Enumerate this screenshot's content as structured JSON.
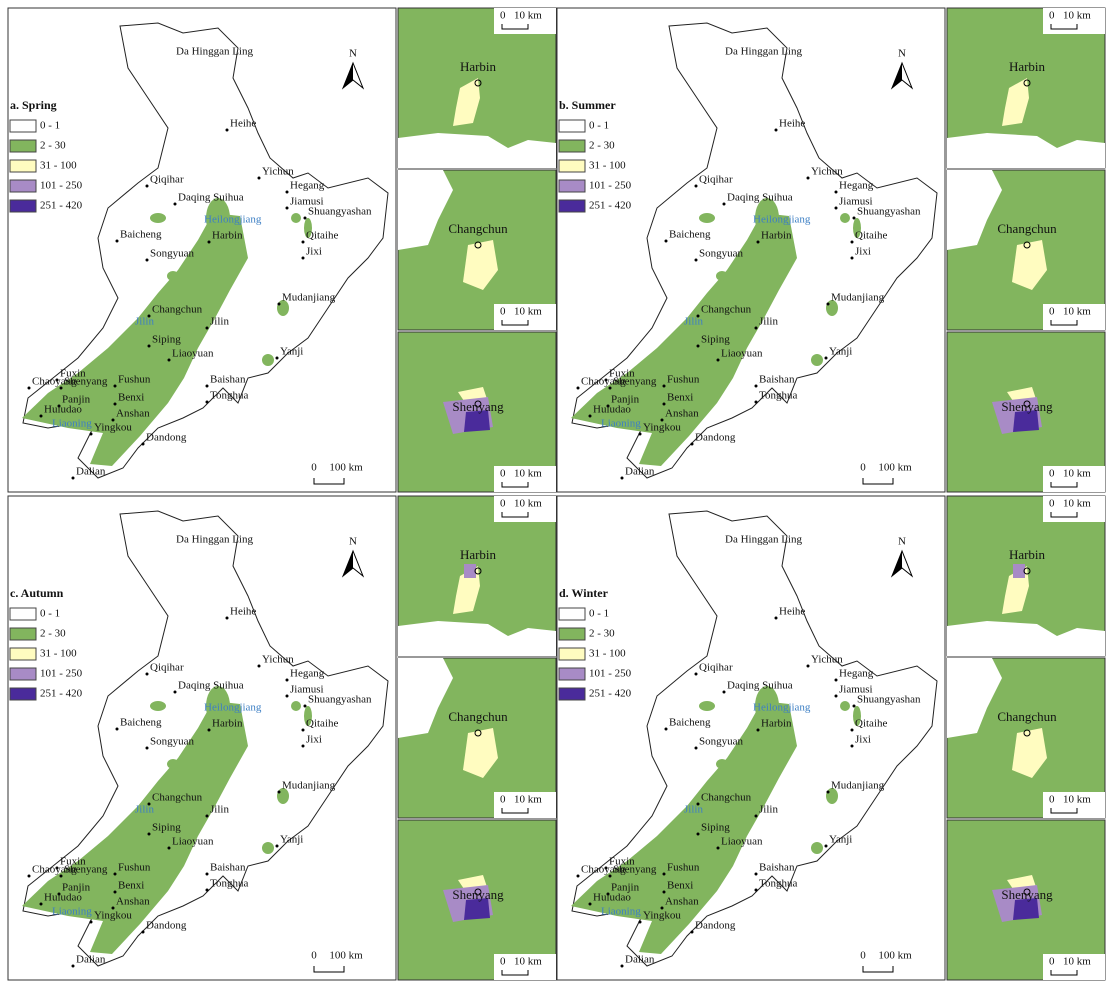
{
  "panels": [
    {
      "title": "a. Spring"
    },
    {
      "title": "b. Summer"
    },
    {
      "title": "c. Autumn"
    },
    {
      "title": "d. Winter"
    }
  ],
  "legend": [
    {
      "label": "0 - 1",
      "color": "#ffffff"
    },
    {
      "label": "2 - 30",
      "color": "#82b55e"
    },
    {
      "label": "31 - 100",
      "color": "#fffcc0"
    },
    {
      "label": "101 - 250",
      "color": "#a88bc6"
    },
    {
      "label": "251 - 420",
      "color": "#4a2b9b"
    }
  ],
  "north": "N",
  "scale": {
    "zero": "0",
    "main": "100 km",
    "inset": "10 km"
  },
  "cities": [
    "Da Hinggan Ling",
    "Heihe",
    "Yichun",
    "Qiqihar",
    "Hegang",
    "Jiamusi",
    "Daqing Suihua",
    "Shuangyashan",
    "Baicheng",
    "Harbin",
    "Qitaihe",
    "Jixi",
    "Songyuan",
    "Mudanjiang",
    "Changchun",
    "Jilin",
    "Siping",
    "Liaoyuan",
    "Yanji",
    "Fuxin",
    "Shenyang",
    "Fushun",
    "Baishan",
    "Chaoyang",
    "Panjin",
    "Benxi",
    "Tonghua",
    "Anshan",
    "Huludao",
    "Yingkou",
    "Dandong",
    "Dalian"
  ],
  "provinces": [
    "Heilongjiang",
    "Jilin",
    "Liaoning"
  ],
  "insets": [
    "Harbin",
    "Changchun",
    "Shenyang"
  ]
}
